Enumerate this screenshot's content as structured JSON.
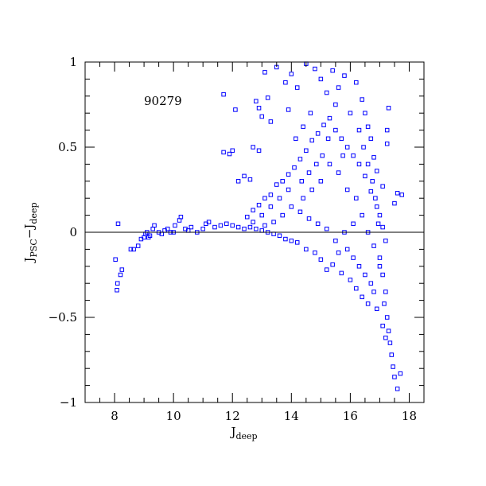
{
  "chart_data": {
    "type": "scatter",
    "title": "",
    "annotation": "90279",
    "xlabel": {
      "main": "J",
      "sub": "deep"
    },
    "ylabel": {
      "main1": "J",
      "sub1": "PSC",
      "sep": "−",
      "main2": "J",
      "sub2": "deep"
    },
    "xlim": [
      7,
      18.5
    ],
    "ylim": [
      -1,
      1
    ],
    "x_major_ticks": [
      8,
      10,
      12,
      14,
      16,
      18
    ],
    "x_tick_labels": [
      "8",
      "10",
      "12",
      "14",
      "16",
      "18"
    ],
    "x_minor_step": 0.5,
    "y_major_ticks": [
      -1,
      -0.5,
      0,
      0.5,
      1
    ],
    "y_tick_labels": [
      "−1",
      "−0.5",
      "0",
      "0.5",
      "1"
    ],
    "y_minor_step": 0.1,
    "reference_line_y": 0,
    "grid": false,
    "marker": "open-square",
    "marker_color": "#0000ff",
    "series": [
      {
        "points": [
          [
            8.03,
            -0.16
          ],
          [
            8.08,
            -0.34
          ],
          [
            8.1,
            -0.3
          ],
          [
            8.2,
            -0.25
          ],
          [
            8.25,
            -0.22
          ],
          [
            8.12,
            0.05
          ],
          [
            8.55,
            -0.1
          ],
          [
            8.65,
            -0.1
          ],
          [
            8.8,
            -0.08
          ],
          [
            8.9,
            -0.04
          ],
          [
            9.0,
            -0.03
          ],
          [
            9.05,
            -0.01
          ],
          [
            9.1,
            0.0
          ],
          [
            9.15,
            -0.03
          ],
          [
            9.2,
            -0.02
          ],
          [
            9.3,
            0.02
          ],
          [
            9.35,
            0.04
          ],
          [
            9.5,
            0.0
          ],
          [
            9.6,
            -0.01
          ],
          [
            9.7,
            0.01
          ],
          [
            9.8,
            0.02
          ],
          [
            9.9,
            0.0
          ],
          [
            10.0,
            0.0
          ],
          [
            10.05,
            0.04
          ],
          [
            10.2,
            0.07
          ],
          [
            10.25,
            0.09
          ],
          [
            10.4,
            0.02
          ],
          [
            10.5,
            0.01
          ],
          [
            10.6,
            0.03
          ],
          [
            10.8,
            0.0
          ],
          [
            11.0,
            0.02
          ],
          [
            11.1,
            0.05
          ],
          [
            11.2,
            0.06
          ],
          [
            11.4,
            0.03
          ],
          [
            11.6,
            0.04
          ],
          [
            11.8,
            0.05
          ],
          [
            11.7,
            0.81
          ],
          [
            12.1,
            0.72
          ],
          [
            11.7,
            0.47
          ],
          [
            11.9,
            0.46
          ],
          [
            12.0,
            0.48
          ],
          [
            12.7,
            0.5
          ],
          [
            12.9,
            0.48
          ],
          [
            13.2,
            0.79
          ],
          [
            13.1,
            0.94
          ],
          [
            13.5,
            0.97
          ],
          [
            12.8,
            0.77
          ],
          [
            12.9,
            0.73
          ],
          [
            13.0,
            0.68
          ],
          [
            13.3,
            0.65
          ],
          [
            12.4,
            0.33
          ],
          [
            12.6,
            0.31
          ],
          [
            12.2,
            0.3
          ],
          [
            13.8,
            0.88
          ],
          [
            13.9,
            0.72
          ],
          [
            14.0,
            0.93
          ],
          [
            14.2,
            0.85
          ],
          [
            14.5,
            0.99
          ],
          [
            14.8,
            0.96
          ],
          [
            15.0,
            0.9
          ],
          [
            15.2,
            0.82
          ],
          [
            15.5,
            0.75
          ],
          [
            15.8,
            0.92
          ],
          [
            16.2,
            0.88
          ],
          [
            16.4,
            0.78
          ],
          [
            16.5,
            0.7
          ],
          [
            16.6,
            0.62
          ],
          [
            16.7,
            0.55
          ],
          [
            16.8,
            0.44
          ],
          [
            16.9,
            0.36
          ],
          [
            17.1,
            0.27
          ],
          [
            17.3,
            0.73
          ],
          [
            17.25,
            0.6
          ],
          [
            17.25,
            0.52
          ],
          [
            17.6,
            0.23
          ],
          [
            17.75,
            0.22
          ],
          [
            17.5,
            0.17
          ],
          [
            17.0,
            0.1
          ],
          [
            17.1,
            0.03
          ],
          [
            17.2,
            -0.05
          ],
          [
            17.0,
            -0.15
          ],
          [
            17.1,
            -0.25
          ],
          [
            17.2,
            -0.35
          ],
          [
            17.15,
            -0.42
          ],
          [
            17.25,
            -0.5
          ],
          [
            17.3,
            -0.58
          ],
          [
            17.35,
            -0.65
          ],
          [
            17.4,
            -0.72
          ],
          [
            17.45,
            -0.79
          ],
          [
            17.5,
            -0.85
          ],
          [
            17.6,
            -0.92
          ],
          [
            17.7,
            -0.83
          ],
          [
            17.2,
            -0.62
          ],
          [
            17.1,
            -0.55
          ],
          [
            16.9,
            -0.45
          ],
          [
            16.6,
            -0.42
          ],
          [
            16.4,
            -0.38
          ],
          [
            16.2,
            -0.33
          ],
          [
            16.0,
            -0.28
          ],
          [
            15.7,
            -0.24
          ],
          [
            15.4,
            -0.19
          ],
          [
            15.2,
            -0.22
          ],
          [
            15.0,
            -0.16
          ],
          [
            14.8,
            -0.12
          ],
          [
            14.5,
            -0.1
          ],
          [
            14.2,
            -0.06
          ],
          [
            14.0,
            -0.05
          ],
          [
            13.8,
            -0.04
          ],
          [
            13.6,
            -0.02
          ],
          [
            13.4,
            -0.01
          ],
          [
            13.2,
            0.0
          ],
          [
            13.0,
            0.01
          ],
          [
            12.8,
            0.02
          ],
          [
            12.6,
            0.03
          ],
          [
            12.4,
            0.02
          ],
          [
            12.2,
            0.03
          ],
          [
            12.0,
            0.04
          ],
          [
            12.5,
            0.09
          ],
          [
            12.7,
            0.13
          ],
          [
            12.9,
            0.16
          ],
          [
            13.1,
            0.2
          ],
          [
            13.3,
            0.22
          ],
          [
            13.5,
            0.28
          ],
          [
            13.7,
            0.3
          ],
          [
            13.9,
            0.34
          ],
          [
            14.1,
            0.38
          ],
          [
            14.3,
            0.43
          ],
          [
            14.5,
            0.48
          ],
          [
            14.7,
            0.54
          ],
          [
            14.9,
            0.58
          ],
          [
            15.1,
            0.63
          ],
          [
            15.3,
            0.67
          ],
          [
            15.5,
            0.6
          ],
          [
            15.7,
            0.55
          ],
          [
            15.9,
            0.5
          ],
          [
            16.1,
            0.45
          ],
          [
            16.3,
            0.4
          ],
          [
            16.5,
            0.33
          ],
          [
            16.7,
            0.24
          ],
          [
            16.9,
            0.15
          ],
          [
            16.4,
            0.1
          ],
          [
            16.1,
            0.05
          ],
          [
            15.8,
            0.0
          ],
          [
            15.5,
            -0.05
          ],
          [
            15.2,
            0.02
          ],
          [
            14.9,
            0.05
          ],
          [
            14.6,
            0.08
          ],
          [
            14.3,
            0.12
          ],
          [
            14.0,
            0.15
          ],
          [
            13.7,
            0.1
          ],
          [
            13.4,
            0.06
          ],
          [
            13.1,
            0.04
          ],
          [
            15.9,
            0.25
          ],
          [
            16.2,
            0.2
          ],
          [
            15.6,
            0.35
          ],
          [
            15.3,
            0.4
          ],
          [
            15.0,
            0.3
          ],
          [
            14.7,
            0.25
          ],
          [
            14.4,
            0.2
          ],
          [
            16.0,
            0.7
          ],
          [
            16.3,
            0.6
          ],
          [
            15.6,
            0.85
          ],
          [
            15.4,
            0.95
          ],
          [
            16.1,
            -0.15
          ],
          [
            16.3,
            -0.2
          ],
          [
            16.5,
            -0.25
          ],
          [
            16.7,
            -0.3
          ],
          [
            16.8,
            -0.35
          ],
          [
            15.9,
            -0.1
          ],
          [
            15.6,
            -0.12
          ],
          [
            16.6,
            0.0
          ],
          [
            16.8,
            -0.08
          ],
          [
            17.0,
            -0.2
          ],
          [
            16.95,
            0.05
          ],
          [
            16.85,
            0.2
          ],
          [
            16.75,
            0.3
          ],
          [
            16.6,
            0.4
          ],
          [
            16.45,
            0.5
          ],
          [
            15.05,
            0.45
          ],
          [
            14.85,
            0.4
          ],
          [
            14.6,
            0.35
          ],
          [
            14.35,
            0.3
          ],
          [
            13.9,
            0.25
          ],
          [
            13.6,
            0.2
          ],
          [
            13.3,
            0.15
          ],
          [
            13.0,
            0.1
          ],
          [
            12.7,
            0.06
          ],
          [
            14.15,
            0.55
          ],
          [
            14.4,
            0.62
          ],
          [
            14.65,
            0.7
          ],
          [
            15.25,
            0.55
          ],
          [
            15.75,
            0.45
          ]
        ]
      }
    ]
  }
}
